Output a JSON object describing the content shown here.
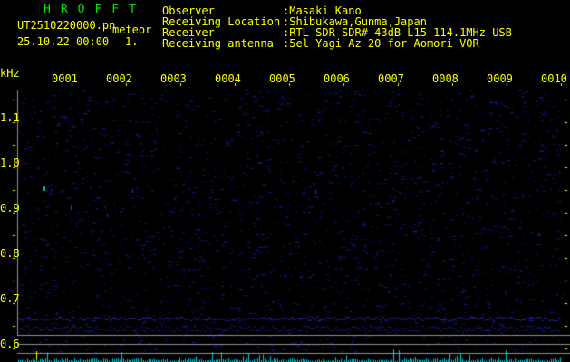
{
  "header": {
    "title": "HROFFT",
    "filename": "UT2510220000.pn",
    "mode": "meteor",
    "datetime": "25.10.22 00:00",
    "index": "1.",
    "info": [
      {
        "label": "Observer",
        "value": ":Masaki Kano"
      },
      {
        "label": "Receiving Location",
        "value": ":Shibukawa,Gunma,Japan"
      },
      {
        "label": "Receiver",
        "value": ":RTL-SDR SDR# 43dB L15 114.1MHz USB"
      },
      {
        "label": "Receiving antenna",
        "value": ":5el Yagi Az 20 for Aomori VOR"
      }
    ]
  },
  "axis": {
    "y_unit": "kHz",
    "y_labels": [
      "1.1",
      "1.0",
      "0.9",
      "0.8",
      "0.7",
      "0.6"
    ],
    "x_labels": [
      "0001",
      "0002",
      "0003",
      "0004",
      "0005",
      "0006",
      "0007",
      "0008",
      "0009",
      "0010"
    ]
  },
  "colors": {
    "text": "#ffff00",
    "title": "#00e000",
    "signal": "#2020c0",
    "echo": "#00e0e0",
    "frame": "#909090"
  }
}
